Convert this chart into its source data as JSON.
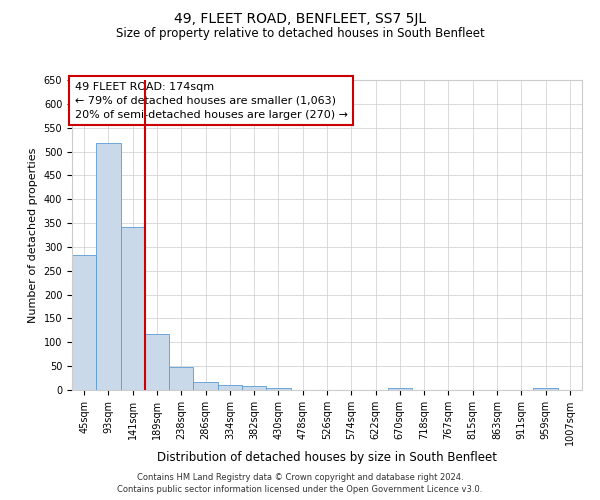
{
  "title": "49, FLEET ROAD, BENFLEET, SS7 5JL",
  "subtitle": "Size of property relative to detached houses in South Benfleet",
  "xlabel": "Distribution of detached houses by size in South Benfleet",
  "ylabel": "Number of detached properties",
  "footer_line1": "Contains HM Land Registry data © Crown copyright and database right 2024.",
  "footer_line2": "Contains public sector information licensed under the Open Government Licence v3.0.",
  "categories": [
    "45sqm",
    "93sqm",
    "141sqm",
    "189sqm",
    "238sqm",
    "286sqm",
    "334sqm",
    "382sqm",
    "430sqm",
    "478sqm",
    "526sqm",
    "574sqm",
    "622sqm",
    "670sqm",
    "718sqm",
    "767sqm",
    "815sqm",
    "863sqm",
    "911sqm",
    "959sqm",
    "1007sqm"
  ],
  "values": [
    283,
    517,
    341,
    118,
    48,
    16,
    10,
    9,
    5,
    0,
    0,
    0,
    0,
    5,
    0,
    0,
    0,
    0,
    0,
    5,
    0
  ],
  "bar_color": "#c9d9ea",
  "bar_edge_color": "#5b9bd5",
  "ylim": [
    0,
    650
  ],
  "yticks": [
    0,
    50,
    100,
    150,
    200,
    250,
    300,
    350,
    400,
    450,
    500,
    550,
    600,
    650
  ],
  "vline_x": 2.5,
  "vline_color": "#cc0000",
  "annotation_line1": "49 FLEET ROAD: 174sqm",
  "annotation_line2": "← 79% of detached houses are smaller (1,063)",
  "annotation_line3": "20% of semi-detached houses are larger (270) →",
  "background_color": "#ffffff",
  "grid_color": "#cccccc",
  "title_fontsize": 10,
  "subtitle_fontsize": 8.5,
  "ylabel_fontsize": 8,
  "xlabel_fontsize": 8.5,
  "tick_fontsize": 7,
  "footer_fontsize": 6,
  "annot_fontsize": 8
}
